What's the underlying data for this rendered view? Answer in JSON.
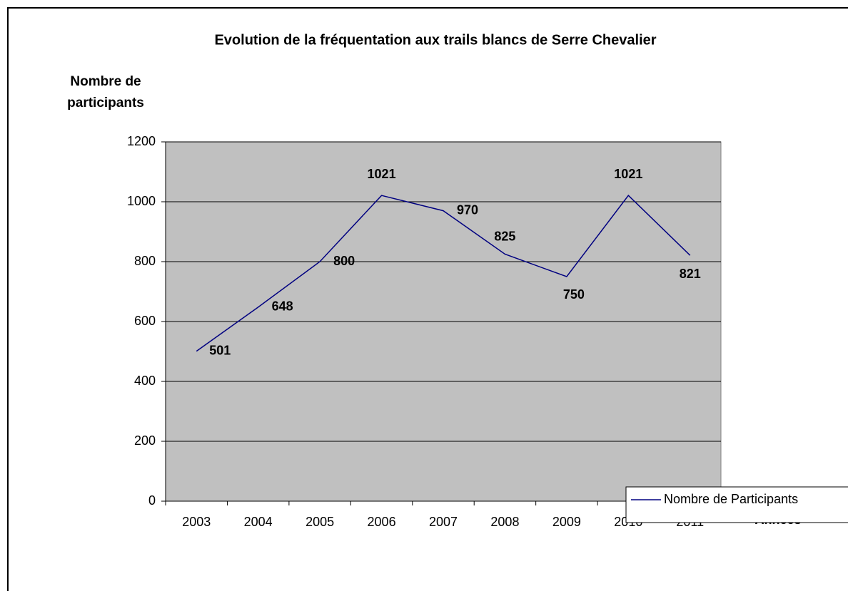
{
  "chart_data": {
    "type": "line",
    "title": "Evolution de la fréquentation aux trails blancs de Serre Chevalier",
    "ylabel": "Nombre de participants",
    "xlabel": "Années",
    "categories": [
      "2003",
      "2004",
      "2005",
      "2006",
      "2007",
      "2008",
      "2009",
      "2010",
      "2011"
    ],
    "series": [
      {
        "name": "Nombre de Participants",
        "color": "#000080",
        "values": [
          501,
          648,
          800,
          1021,
          970,
          825,
          750,
          1021,
          821
        ]
      }
    ],
    "ylim": [
      0,
      1200
    ],
    "yticks": [
      0,
      200,
      400,
      600,
      800,
      1000,
      1200
    ],
    "grid": true,
    "plot_background": "#c0c0c0",
    "legend": "bottom-right"
  }
}
